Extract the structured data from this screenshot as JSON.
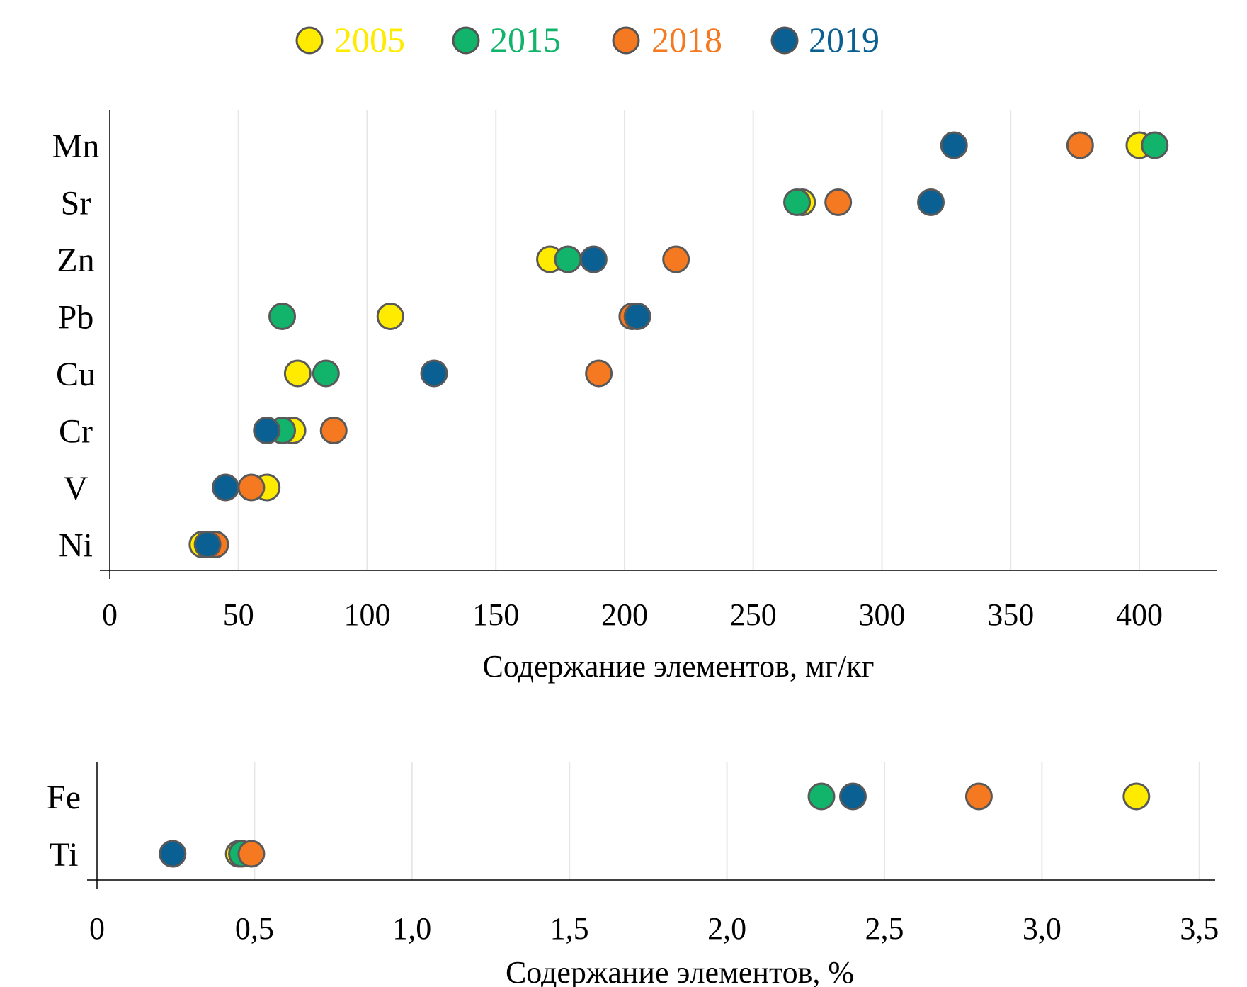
{
  "legend": [
    {
      "name": "2005",
      "color": "#ffeb00"
    },
    {
      "name": "2015",
      "color": "#12b36a"
    },
    {
      "name": "2018",
      "color": "#f47920"
    },
    {
      "name": "2019",
      "color": "#0a5f93"
    }
  ],
  "chart_data": [
    {
      "type": "scatter",
      "xlabel": "Содержание элементов, мг/кг",
      "ylabel": "",
      "xlim": [
        0,
        430
      ],
      "xticks": [
        0,
        50,
        100,
        150,
        200,
        250,
        300,
        350,
        400
      ],
      "xtick_labels": [
        "0",
        "50",
        "100",
        "150",
        "200",
        "250",
        "300",
        "350",
        "400"
      ],
      "categories": [
        "Mn",
        "Sr",
        "Zn",
        "Pb",
        "Cu",
        "Cr",
        "V",
        "Ni"
      ],
      "grid": true,
      "series": [
        {
          "name": "2005",
          "values": [
            400,
            269,
            171,
            109,
            73,
            71,
            61,
            36
          ]
        },
        {
          "name": "2015",
          "values": [
            406,
            267,
            178,
            67,
            84,
            67,
            null,
            40
          ]
        },
        {
          "name": "2018",
          "values": [
            377,
            283,
            220,
            203,
            190,
            87,
            55,
            41
          ]
        },
        {
          "name": "2019",
          "values": [
            328,
            319,
            188,
            205,
            126,
            61,
            45,
            38
          ]
        }
      ]
    },
    {
      "type": "scatter",
      "xlabel": "Содержание элементов, %",
      "ylabel": "",
      "xlim": [
        0,
        3.55
      ],
      "xticks": [
        0,
        0.5,
        1.0,
        1.5,
        2.0,
        2.5,
        3.0,
        3.5
      ],
      "xtick_labels": [
        "0",
        "0,5",
        "1,0",
        "1,5",
        "2,0",
        "2,5",
        "3,0",
        "3,5"
      ],
      "categories": [
        "Fe",
        "Ti"
      ],
      "grid": true,
      "series": [
        {
          "name": "2005",
          "values": [
            3.3,
            0.45
          ]
        },
        {
          "name": "2015",
          "values": [
            2.3,
            0.46
          ]
        },
        {
          "name": "2018",
          "values": [
            2.8,
            0.49
          ]
        },
        {
          "name": "2019",
          "values": [
            2.4,
            0.24
          ]
        }
      ]
    }
  ]
}
